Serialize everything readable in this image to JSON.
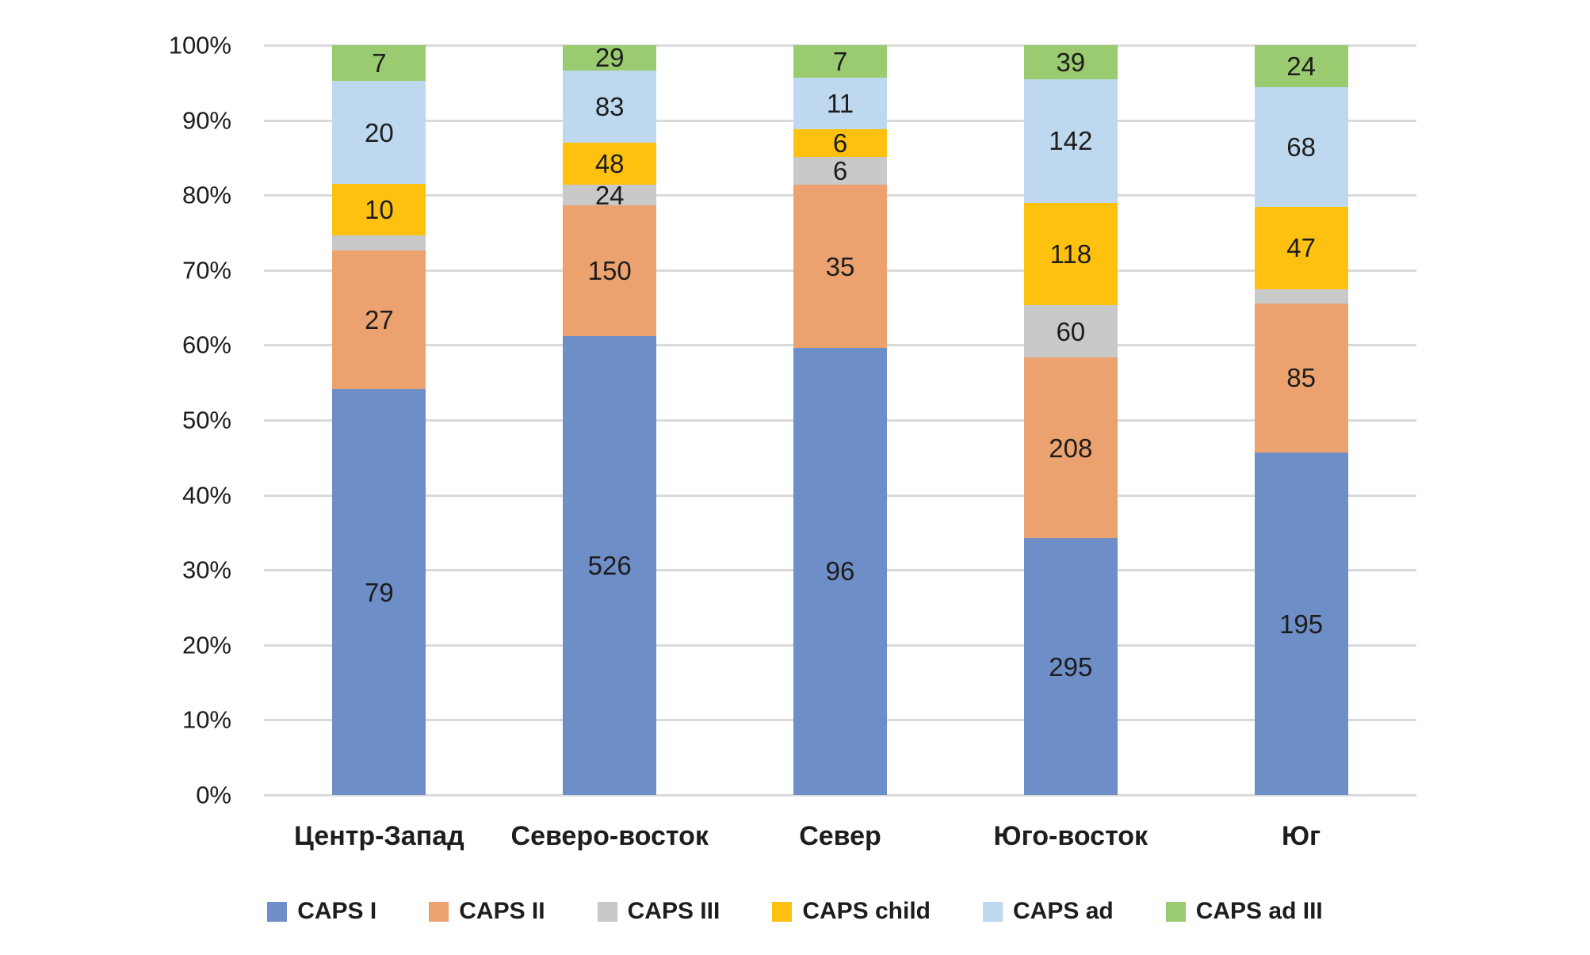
{
  "chart_data": {
    "type": "bar",
    "stacking": "percent",
    "title": "",
    "categories": [
      "Центр-Запад",
      "Северо-восток",
      "Север",
      "Юго-восток",
      "Юг"
    ],
    "series": [
      {
        "name": "CAPS I",
        "color": "#6d8ec6",
        "values": [
          79,
          526,
          96,
          295,
          195
        ],
        "labels": [
          "79",
          "526",
          "96",
          "295",
          "195"
        ]
      },
      {
        "name": "CAPS II",
        "color": "#eca26f",
        "values": [
          27,
          150,
          35,
          208,
          85
        ],
        "labels": [
          "27",
          "150",
          "35",
          "208",
          "85"
        ]
      },
      {
        "name": "CAPS III",
        "color": "#c9c9c9",
        "values": [
          3,
          24,
          6,
          60,
          8
        ],
        "labels": [
          "",
          "24",
          "6",
          "60",
          ""
        ]
      },
      {
        "name": "CAPS child",
        "color": "#fec110",
        "values": [
          10,
          48,
          6,
          118,
          47
        ],
        "labels": [
          "10",
          "48",
          "6",
          "118",
          "47"
        ]
      },
      {
        "name": "CAPS ad",
        "color": "#bdd8ef",
        "values": [
          20,
          83,
          11,
          142,
          68
        ],
        "labels": [
          "20",
          "83",
          "11",
          "142",
          "68"
        ]
      },
      {
        "name": "CAPS ad III",
        "color": "#9acb70",
        "values": [
          7,
          29,
          7,
          39,
          24
        ],
        "labels": [
          "7",
          "29",
          "7",
          "39",
          "24"
        ]
      }
    ],
    "y_axis": {
      "ticks": [
        "0%",
        "10%",
        "20%",
        "30%",
        "40%",
        "50%",
        "60%",
        "70%",
        "80%",
        "90%",
        "100%"
      ],
      "min": 0,
      "max": 100,
      "grid": true
    },
    "legend": {
      "position": "bottom",
      "entries": [
        "CAPS I",
        "CAPS II",
        "CAPS III",
        "CAPS child",
        "CAPS ad",
        "CAPS ad III"
      ]
    },
    "colors": {
      "grid": "#dadada",
      "text": "#1d1d1d",
      "background": "#ffffff"
    }
  }
}
